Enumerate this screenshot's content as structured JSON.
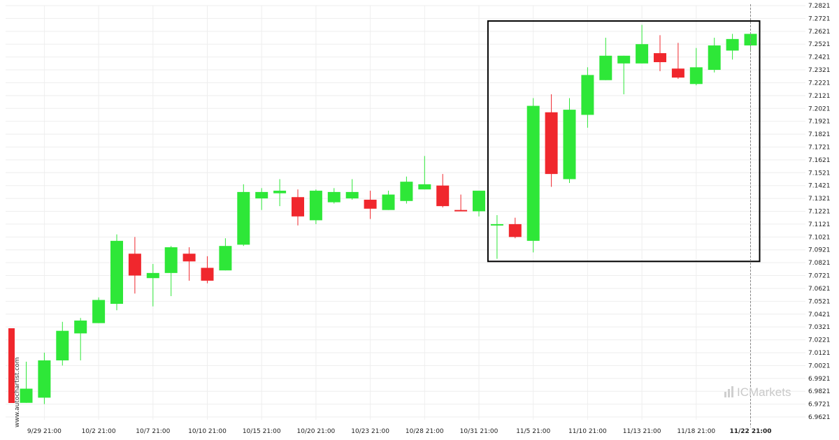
{
  "brand": {
    "name": "ICMarkets",
    "source": "www.autochartist.com"
  },
  "colors": {
    "up": "#2ee738",
    "down": "#f0272d",
    "grid": "#eeeeee",
    "pattern_box": "#000000",
    "cursor_line": "#888888"
  },
  "chart_data": {
    "type": "candlestick",
    "title": "",
    "xlabel": "",
    "ylabel": "",
    "ylim": [
      6.9571,
      7.2871
    ],
    "grid": true,
    "y_ticks": [
      "7.2821",
      "7.2721",
      "7.2621",
      "7.2521",
      "7.2421",
      "7.2321",
      "7.2221",
      "7.2121",
      "7.2021",
      "7.1921",
      "7.1821",
      "7.1721",
      "7.1621",
      "7.1521",
      "7.1421",
      "7.1321",
      "7.1221",
      "7.1121",
      "7.1021",
      "7.0921",
      "7.0821",
      "7.0721",
      "7.0621",
      "7.0521",
      "7.0421",
      "7.0321",
      "7.0221",
      "7.0121",
      "7.0021",
      "6.9921",
      "6.9821",
      "6.9721",
      "6.9621"
    ],
    "x_ticks": [
      {
        "label": "9/29 21:00",
        "index": 1
      },
      {
        "label": "10/2 21:00",
        "index": 4
      },
      {
        "label": "10/7 21:00",
        "index": 7
      },
      {
        "label": "10/10 21:00",
        "index": 10
      },
      {
        "label": "10/15 21:00",
        "index": 13
      },
      {
        "label": "10/20 21:00",
        "index": 16
      },
      {
        "label": "10/23 21:00",
        "index": 19
      },
      {
        "label": "10/28 21:00",
        "index": 22
      },
      {
        "label": "10/31 21:00",
        "index": 25
      },
      {
        "label": "11/5 21:00",
        "index": 28
      },
      {
        "label": "11/10 21:00",
        "index": 31
      },
      {
        "label": "11/13 21:00",
        "index": 34
      },
      {
        "label": "11/18 21:00",
        "index": 37
      },
      {
        "label": "11/22 21:00",
        "index": 40,
        "bold": true
      }
    ],
    "candles": [
      {
        "o": 6.9731,
        "h": 7.0051,
        "l": 6.9731,
        "c": 6.9841
      },
      {
        "o": 6.9771,
        "h": 7.0121,
        "l": 6.9721,
        "c": 7.0061
      },
      {
        "o": 7.0061,
        "h": 7.0361,
        "l": 7.0021,
        "c": 7.0291
      },
      {
        "o": 7.0271,
        "h": 7.0391,
        "l": 7.0061,
        "c": 7.0371
      },
      {
        "o": 7.0351,
        "h": 7.0551,
        "l": 7.0351,
        "c": 7.0531
      },
      {
        "o": 7.0501,
        "h": 7.1041,
        "l": 7.0451,
        "c": 7.0991
      },
      {
        "o": 7.0891,
        "h": 7.1021,
        "l": 7.0581,
        "c": 7.0721
      },
      {
        "o": 7.0701,
        "h": 7.0811,
        "l": 7.0481,
        "c": 7.0741
      },
      {
        "o": 7.0741,
        "h": 7.0951,
        "l": 7.0561,
        "c": 7.0941
      },
      {
        "o": 7.0891,
        "h": 7.0941,
        "l": 7.0681,
        "c": 7.0831
      },
      {
        "o": 7.0781,
        "h": 7.0871,
        "l": 7.0661,
        "c": 7.0681
      },
      {
        "o": 7.0761,
        "h": 7.1011,
        "l": 7.0761,
        "c": 7.0951
      },
      {
        "o": 7.0961,
        "h": 7.1431,
        "l": 7.0951,
        "c": 7.1371
      },
      {
        "o": 7.1321,
        "h": 7.1401,
        "l": 7.1231,
        "c": 7.1371
      },
      {
        "o": 7.1361,
        "h": 7.1471,
        "l": 7.1261,
        "c": 7.1381
      },
      {
        "o": 7.1331,
        "h": 7.1391,
        "l": 7.1111,
        "c": 7.1181
      },
      {
        "o": 7.1151,
        "h": 7.1391,
        "l": 7.1121,
        "c": 7.1381
      },
      {
        "o": 7.1291,
        "h": 7.1401,
        "l": 7.1281,
        "c": 7.1371
      },
      {
        "o": 7.1321,
        "h": 7.1471,
        "l": 7.1311,
        "c": 7.1371
      },
      {
        "o": 7.1311,
        "h": 7.1381,
        "l": 7.1161,
        "c": 7.1241
      },
      {
        "o": 7.1231,
        "h": 7.1381,
        "l": 7.1231,
        "c": 7.1351
      },
      {
        "o": 7.1301,
        "h": 7.1491,
        "l": 7.1281,
        "c": 7.1451
      },
      {
        "o": 7.1391,
        "h": 7.1651,
        "l": 7.1391,
        "c": 7.1431
      },
      {
        "o": 7.1421,
        "h": 7.1511,
        "l": 7.1251,
        "c": 7.1261
      },
      {
        "o": 7.1231,
        "h": 7.1351,
        "l": 7.1221,
        "c": 7.1221
      },
      {
        "o": 7.1221,
        "h": 7.1371,
        "l": 7.1181,
        "c": 7.1381
      },
      {
        "o": 7.1121,
        "h": 7.1191,
        "l": 7.0851,
        "c": 7.1121
      },
      {
        "o": 7.1121,
        "h": 7.1171,
        "l": 7.1011,
        "c": 7.1021
      },
      {
        "o": 7.0991,
        "h": 7.2101,
        "l": 7.0901,
        "c": 7.2041
      },
      {
        "o": 7.1991,
        "h": 7.2131,
        "l": 7.1411,
        "c": 7.1511
      },
      {
        "o": 7.1471,
        "h": 7.2101,
        "l": 7.1441,
        "c": 7.2011
      },
      {
        "o": 7.1971,
        "h": 7.2341,
        "l": 7.1871,
        "c": 7.2281
      },
      {
        "o": 7.2241,
        "h": 7.2571,
        "l": 7.2241,
        "c": 7.2431
      },
      {
        "o": 7.2371,
        "h": 7.2431,
        "l": 7.2131,
        "c": 7.2431
      },
      {
        "o": 7.2371,
        "h": 7.2671,
        "l": 7.2371,
        "c": 7.2521
      },
      {
        "o": 7.2451,
        "h": 7.2591,
        "l": 7.2311,
        "c": 7.2381
      },
      {
        "o": 7.2331,
        "h": 7.2531,
        "l": 7.2251,
        "c": 7.2261
      },
      {
        "o": 7.2211,
        "h": 7.2491,
        "l": 7.2201,
        "c": 7.2341
      },
      {
        "o": 7.2321,
        "h": 7.2571,
        "l": 7.2301,
        "c": 7.2511
      },
      {
        "o": 7.2471,
        "h": 7.2601,
        "l": 7.2401,
        "c": 7.2561
      },
      {
        "o": 7.2511,
        "h": 7.2601,
        "l": 7.2461,
        "c": 7.2601
      }
    ],
    "pattern_box": {
      "start_index": 26,
      "end_index": 40,
      "high": 7.2701,
      "low": 7.0831
    }
  }
}
